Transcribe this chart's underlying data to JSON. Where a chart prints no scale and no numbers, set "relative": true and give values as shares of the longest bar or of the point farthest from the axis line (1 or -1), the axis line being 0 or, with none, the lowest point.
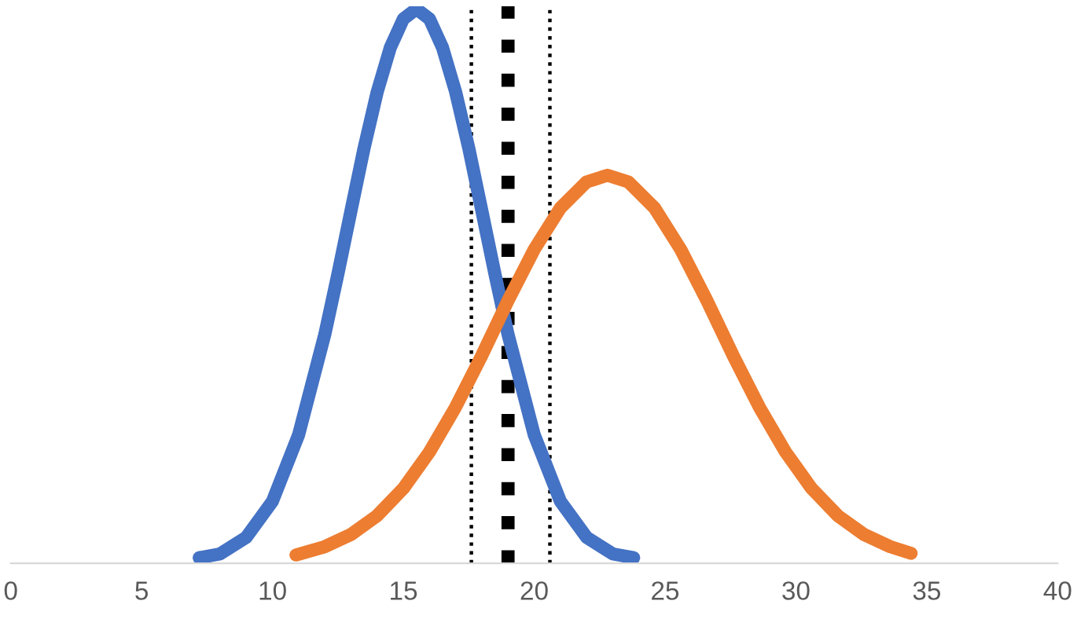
{
  "chart_data": {
    "type": "line",
    "relative": true,
    "xlim": [
      0,
      40
    ],
    "xticks": [
      0,
      5,
      10,
      15,
      20,
      25,
      30,
      35,
      40
    ],
    "tick_labels": "x",
    "grid": false,
    "legend": false,
    "marker": "none",
    "line_style": "solid",
    "series": [
      {
        "color": "#4472c4",
        "x": [
          7.2,
          8,
          9,
          10,
          11,
          12,
          12.5,
          13,
          13.5,
          14,
          14.5,
          15,
          15.5,
          16,
          16.5,
          17,
          17.5,
          18,
          18.5,
          19,
          20,
          21,
          22,
          23,
          23.8
        ],
        "values": [
          0.01,
          0.017,
          0.047,
          0.112,
          0.232,
          0.413,
          0.522,
          0.636,
          0.749,
          0.85,
          0.93,
          0.982,
          1,
          0.982,
          0.93,
          0.85,
          0.749,
          0.636,
          0.522,
          0.413,
          0.232,
          0.112,
          0.047,
          0.017,
          0.01
        ]
      },
      {
        "color": "#ed7d31",
        "x": [
          10.9,
          12,
          13,
          14,
          15,
          16,
          17,
          18,
          19,
          20,
          21,
          22,
          22.8,
          23.6,
          24.6,
          25.6,
          26.6,
          27.6,
          28.6,
          29.6,
          30.6,
          31.6,
          32.6,
          33.6,
          34.4
        ],
        "values": [
          0.015,
          0.03,
          0.052,
          0.086,
          0.135,
          0.201,
          0.282,
          0.375,
          0.474,
          0.566,
          0.641,
          0.688,
          0.7,
          0.688,
          0.641,
          0.566,
          0.474,
          0.375,
          0.282,
          0.201,
          0.135,
          0.086,
          0.052,
          0.03,
          0.018
        ]
      }
    ],
    "ref_lines": [
      {
        "axis": "x",
        "value": 17.6,
        "color": "#000000",
        "line_style": "dotted"
      },
      {
        "axis": "x",
        "value": 19.0,
        "color": "#000000",
        "line_style": "dashed"
      },
      {
        "axis": "x",
        "value": 20.6,
        "color": "#000000",
        "line_style": "dotted"
      }
    ]
  }
}
